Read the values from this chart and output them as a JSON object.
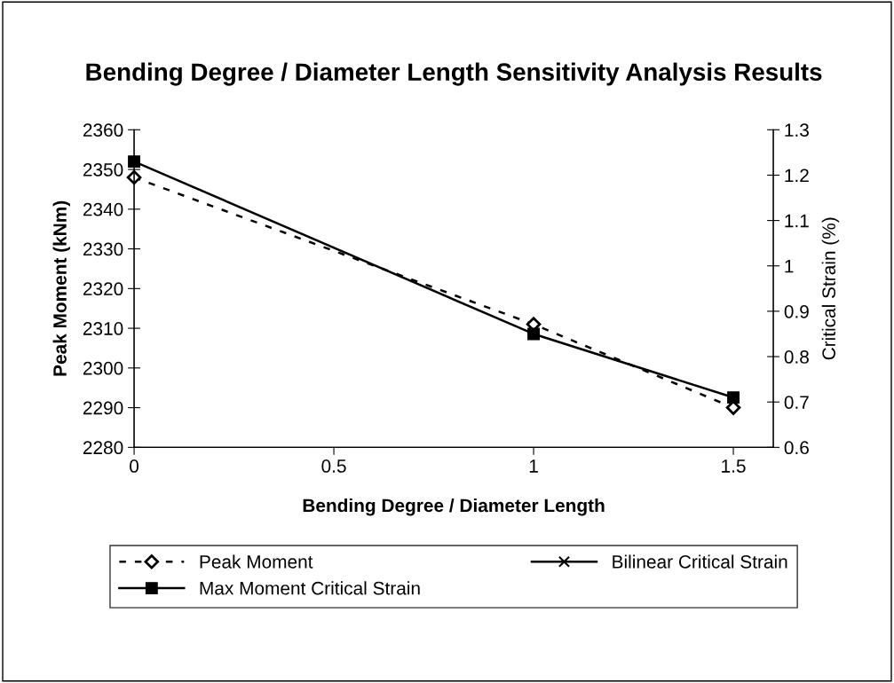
{
  "chart_data": {
    "type": "line",
    "title": "Bending Degree / Diameter Length Sensitivity Analysis Results",
    "xlabel": "Bending Degree / Diameter Length",
    "ylabel": "Peak Moment (kNm)",
    "y2label": "Critical Strain (%)",
    "x": [
      0,
      1,
      1.5
    ],
    "series": [
      {
        "name": "Peak Moment",
        "color": "#000000",
        "values": [
          2348,
          2311,
          2290
        ],
        "marker": "diamond",
        "line_style": "dashed"
      },
      {
        "name": "Bilinear Critical Strain",
        "color": "#000000",
        "values": [
          null,
          null,
          null
        ],
        "axis": "y2",
        "marker": "cross",
        "line_style": "solid"
      },
      {
        "name": "Max Moment Critical Strain",
        "color": "#000000",
        "values": [
          1.23,
          0.85,
          0.71
        ],
        "axis": "y2",
        "marker": "square",
        "line_style": "solid"
      }
    ],
    "xlim": [
      0,
      1.6
    ],
    "xticks": [
      0,
      0.5,
      1,
      1.5
    ],
    "ylim": [
      2280,
      2360
    ],
    "yticks": [
      2280,
      2290,
      2300,
      2310,
      2320,
      2330,
      2340,
      2350,
      2360
    ],
    "y2lim": [
      0.6,
      1.3
    ],
    "y2ticks": [
      0.6,
      0.7,
      0.8,
      0.9,
      1,
      1.1,
      1.2,
      1.3
    ],
    "grid": false,
    "legend": "bottom"
  }
}
